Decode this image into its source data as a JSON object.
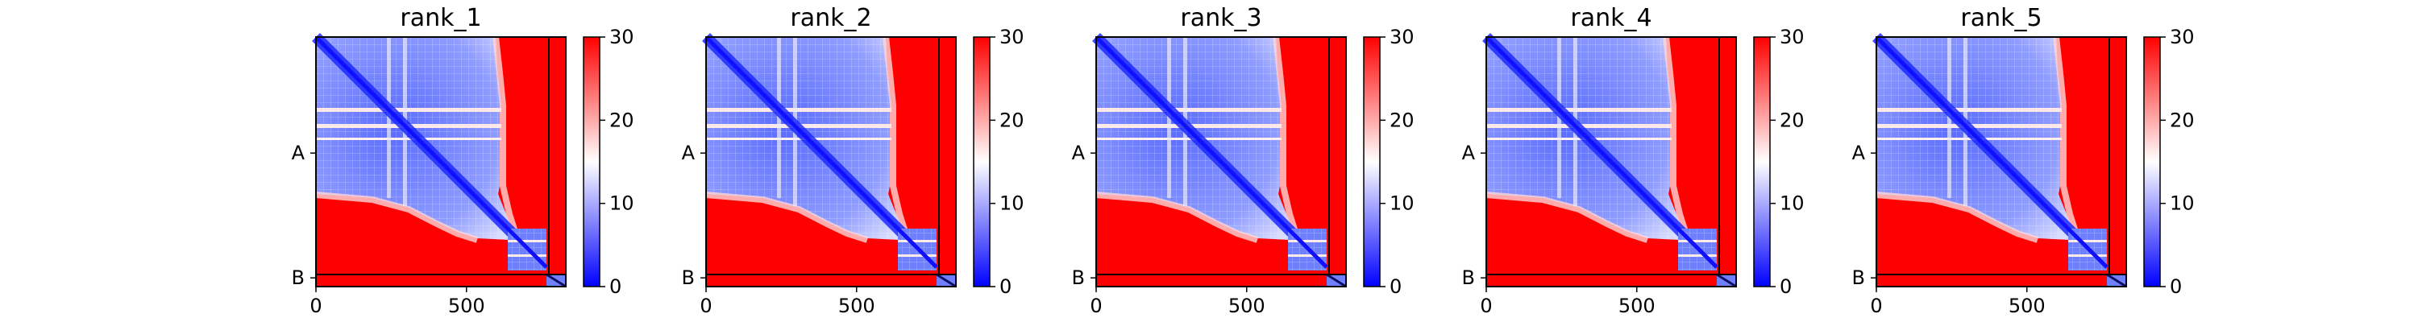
{
  "chart_data": [
    {
      "type": "heatmap",
      "title": "rank_1",
      "x_ticks": [
        0,
        500
      ],
      "y_tick_labels": [
        "A",
        "B"
      ],
      "colorbar": {
        "min": 0,
        "max": 30,
        "ticks": [
          0,
          10,
          20,
          30
        ],
        "colors": [
          "#0000ff",
          "#ffffff",
          "#ff0000"
        ]
      },
      "xlim": [
        0,
        830
      ],
      "chains": [
        {
          "name": "A",
          "start": 0,
          "end": 772
        },
        {
          "name": "B",
          "start": 772,
          "end": 830
        }
      ],
      "vertical_line_x": 780
    },
    {
      "type": "heatmap",
      "title": "rank_2",
      "x_ticks": [
        0,
        500
      ],
      "y_tick_labels": [
        "A",
        "B"
      ],
      "colorbar": {
        "min": 0,
        "max": 30,
        "ticks": [
          0,
          10,
          20,
          30
        ],
        "colors": [
          "#0000ff",
          "#ffffff",
          "#ff0000"
        ]
      },
      "xlim": [
        0,
        830
      ],
      "chains": [
        {
          "name": "A",
          "start": 0,
          "end": 772
        },
        {
          "name": "B",
          "start": 772,
          "end": 830
        }
      ],
      "vertical_line_x": 780
    },
    {
      "type": "heatmap",
      "title": "rank_3",
      "x_ticks": [
        0,
        500
      ],
      "y_tick_labels": [
        "A",
        "B"
      ],
      "colorbar": {
        "min": 0,
        "max": 30,
        "ticks": [
          0,
          10,
          20,
          30
        ],
        "colors": [
          "#0000ff",
          "#ffffff",
          "#ff0000"
        ]
      },
      "xlim": [
        0,
        830
      ],
      "chains": [
        {
          "name": "A",
          "start": 0,
          "end": 772
        },
        {
          "name": "B",
          "start": 772,
          "end": 830
        }
      ],
      "vertical_line_x": 780
    },
    {
      "type": "heatmap",
      "title": "rank_4",
      "x_ticks": [
        0,
        500
      ],
      "y_tick_labels": [
        "A",
        "B"
      ],
      "colorbar": {
        "min": 0,
        "max": 30,
        "ticks": [
          0,
          10,
          20,
          30
        ],
        "colors": [
          "#0000ff",
          "#ffffff",
          "#ff0000"
        ]
      },
      "xlim": [
        0,
        830
      ],
      "chains": [
        {
          "name": "A",
          "start": 0,
          "end": 772
        },
        {
          "name": "B",
          "start": 772,
          "end": 830
        }
      ],
      "vertical_line_x": 780
    },
    {
      "type": "heatmap",
      "title": "rank_5",
      "x_ticks": [
        0,
        500
      ],
      "y_tick_labels": [
        "A",
        "B"
      ],
      "colorbar": {
        "min": 0,
        "max": 30,
        "ticks": [
          0,
          10,
          20,
          30
        ],
        "colors": [
          "#0000ff",
          "#ffffff",
          "#ff0000"
        ]
      },
      "xlim": [
        0,
        830
      ],
      "chains": [
        {
          "name": "A",
          "start": 0,
          "end": 772
        },
        {
          "name": "B",
          "start": 772,
          "end": 830
        }
      ],
      "vertical_line_x": 780
    }
  ]
}
